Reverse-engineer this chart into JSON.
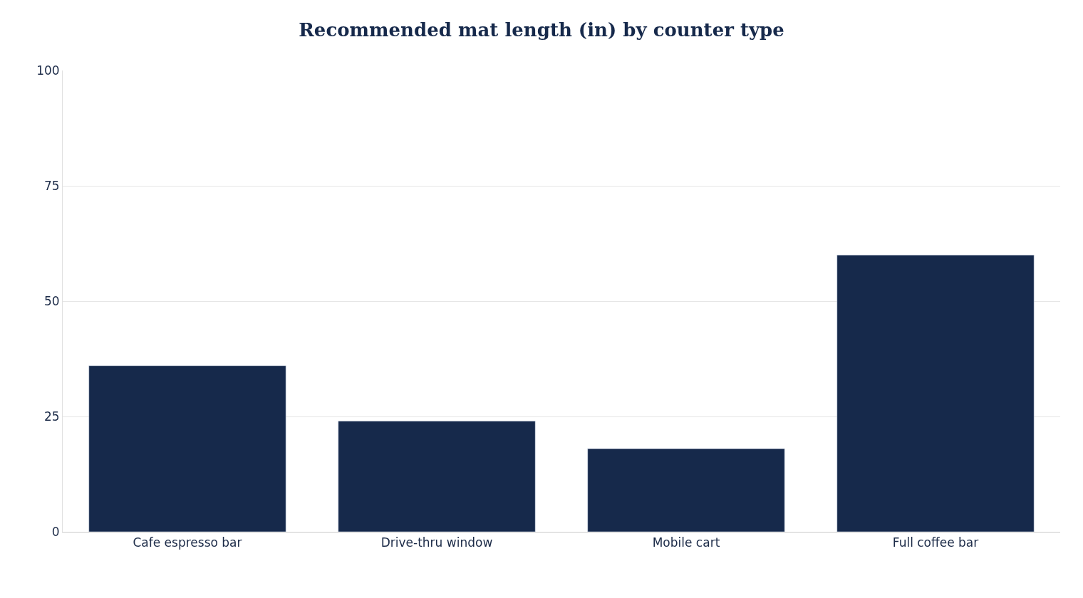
{
  "chart_data": {
    "type": "bar",
    "title": "Recommended mat length (in) by counter type",
    "categories": [
      "Cafe espresso bar",
      "Drive-thru window",
      "Mobile cart",
      "Full coffee bar"
    ],
    "values": [
      36,
      24,
      18,
      60
    ],
    "color": "#16294b",
    "ylim": [
      0,
      100
    ],
    "yticks": [
      0,
      25,
      50,
      75,
      100
    ],
    "grid": "y",
    "legend": false
  }
}
